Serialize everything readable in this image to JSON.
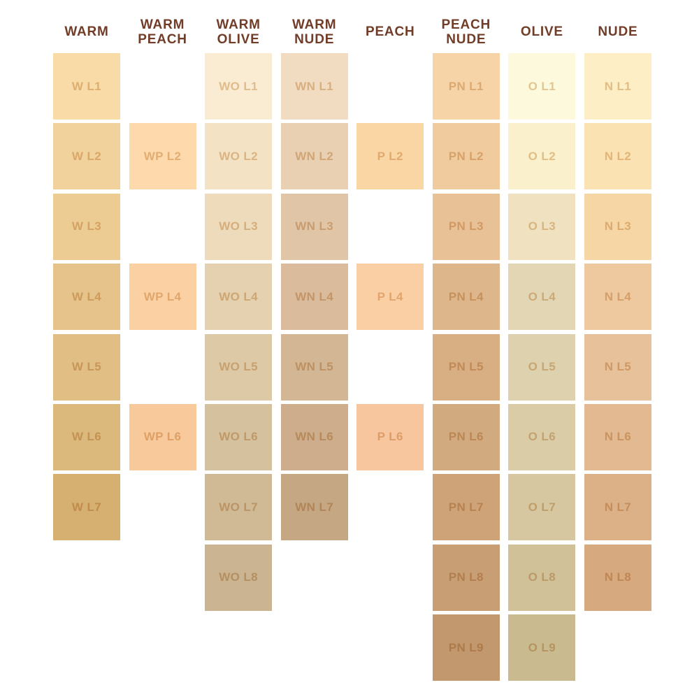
{
  "page": {
    "background": "#FFFFFF",
    "header_text_color": "#713C28"
  },
  "chart_data": {
    "type": "table",
    "grid": {
      "rows": 9,
      "columns": 8
    },
    "legend_position": "none",
    "columns": [
      {
        "header": "WARM",
        "code": "W",
        "swatches": [
          {
            "label": "W L1",
            "row": 1,
            "color": "#F8DBA7"
          },
          {
            "label": "W L2",
            "row": 2,
            "color": "#F2D29C"
          },
          {
            "label": "W L3",
            "row": 3,
            "color": "#EDCC94"
          },
          {
            "label": "W L4",
            "row": 4,
            "color": "#E5C38B"
          },
          {
            "label": "W L5",
            "row": 5,
            "color": "#E0BE84"
          },
          {
            "label": "W L6",
            "row": 6,
            "color": "#DBB87C"
          },
          {
            "label": "W L7",
            "row": 7,
            "color": "#D6B071"
          }
        ]
      },
      {
        "header": "WARM PEACH",
        "code": "WP",
        "swatches": [
          {
            "label": "WP L2",
            "row": 2,
            "color": "#FDD9AC"
          },
          {
            "label": "WP L4",
            "row": 4,
            "color": "#FBD1A3"
          },
          {
            "label": "WP L6",
            "row": 6,
            "color": "#F8C99A"
          }
        ]
      },
      {
        "header": "WARM OLIVE",
        "code": "WO",
        "swatches": [
          {
            "label": "WO L1",
            "row": 1,
            "color": "#FAECD2"
          },
          {
            "label": "WO L2",
            "row": 2,
            "color": "#F4E2C5"
          },
          {
            "label": "WO L3",
            "row": 3,
            "color": "#EEDBBB"
          },
          {
            "label": "WO L4",
            "row": 4,
            "color": "#E5D1AF"
          },
          {
            "label": "WO L5",
            "row": 5,
            "color": "#DEC9A7"
          },
          {
            "label": "WO L6",
            "row": 6,
            "color": "#D6C19F"
          },
          {
            "label": "WO L7",
            "row": 7,
            "color": "#D0BA96"
          },
          {
            "label": "WO L8",
            "row": 8,
            "color": "#CAB491"
          }
        ]
      },
      {
        "header": "WARM NUDE",
        "code": "WN",
        "swatches": [
          {
            "label": "WN L1",
            "row": 1,
            "color": "#F2DCC1"
          },
          {
            "label": "WN L2",
            "row": 2,
            "color": "#E9D0B2"
          },
          {
            "label": "WN L3",
            "row": 3,
            "color": "#E1C5A7"
          },
          {
            "label": "WN L4",
            "row": 4,
            "color": "#DABC9C"
          },
          {
            "label": "WN L5",
            "row": 5,
            "color": "#D3B694"
          },
          {
            "label": "WN L6",
            "row": 6,
            "color": "#CDAD8B"
          },
          {
            "label": "WN L7",
            "row": 7,
            "color": "#C6A783"
          }
        ]
      },
      {
        "header": "PEACH",
        "code": "P",
        "swatches": [
          {
            "label": "P L2",
            "row": 2,
            "color": "#FBD6A5"
          },
          {
            "label": "P L4",
            "row": 4,
            "color": "#FBCFA4"
          },
          {
            "label": "P L6",
            "row": 6,
            "color": "#F7C59E"
          }
        ]
      },
      {
        "header": "PEACH NUDE",
        "code": "PN",
        "swatches": [
          {
            "label": "PN L1",
            "row": 1,
            "color": "#F6D4A8"
          },
          {
            "label": "PN L2",
            "row": 2,
            "color": "#F0CB9E"
          },
          {
            "label": "PN L3",
            "row": 3,
            "color": "#E9C197"
          },
          {
            "label": "PN L4",
            "row": 4,
            "color": "#DEB68B"
          },
          {
            "label": "PN L5",
            "row": 5,
            "color": "#D8AE83"
          },
          {
            "label": "PN L6",
            "row": 6,
            "color": "#D1AA7F"
          },
          {
            "label": "PN L7",
            "row": 7,
            "color": "#CDA377"
          },
          {
            "label": "PN L8",
            "row": 8,
            "color": "#C89F75"
          },
          {
            "label": "PN L9",
            "row": 9,
            "color": "#C2996E"
          }
        ]
      },
      {
        "header": "OLIVE",
        "code": "O",
        "swatches": [
          {
            "label": "O L1",
            "row": 1,
            "color": "#FDF9DC"
          },
          {
            "label": "O L2",
            "row": 2,
            "color": "#FAF0CB"
          },
          {
            "label": "O L3",
            "row": 3,
            "color": "#F0E2C0"
          },
          {
            "label": "O L4",
            "row": 4,
            "color": "#E3D6B4"
          },
          {
            "label": "O L5",
            "row": 5,
            "color": "#DED1AD"
          },
          {
            "label": "O L6",
            "row": 6,
            "color": "#DACCA7"
          },
          {
            "label": "O L7",
            "row": 7,
            "color": "#D6C7A0"
          },
          {
            "label": "O L8",
            "row": 8,
            "color": "#D1C199"
          },
          {
            "label": "O L9",
            "row": 9,
            "color": "#CABA8F"
          }
        ]
      },
      {
        "header": "NUDE",
        "code": "N",
        "swatches": [
          {
            "label": "N L1",
            "row": 1,
            "color": "#FDEEC6"
          },
          {
            "label": "N L2",
            "row": 2,
            "color": "#FBE2B3"
          },
          {
            "label": "N L3",
            "row": 3,
            "color": "#F7D6A6"
          },
          {
            "label": "N L4",
            "row": 4,
            "color": "#EEC89F"
          },
          {
            "label": "N L5",
            "row": 5,
            "color": "#E6C199"
          },
          {
            "label": "N L6",
            "row": 6,
            "color": "#E2B990"
          },
          {
            "label": "N L7",
            "row": 7,
            "color": "#DCB188"
          },
          {
            "label": "N L8",
            "row": 8,
            "color": "#D6A97E"
          }
        ]
      }
    ]
  }
}
